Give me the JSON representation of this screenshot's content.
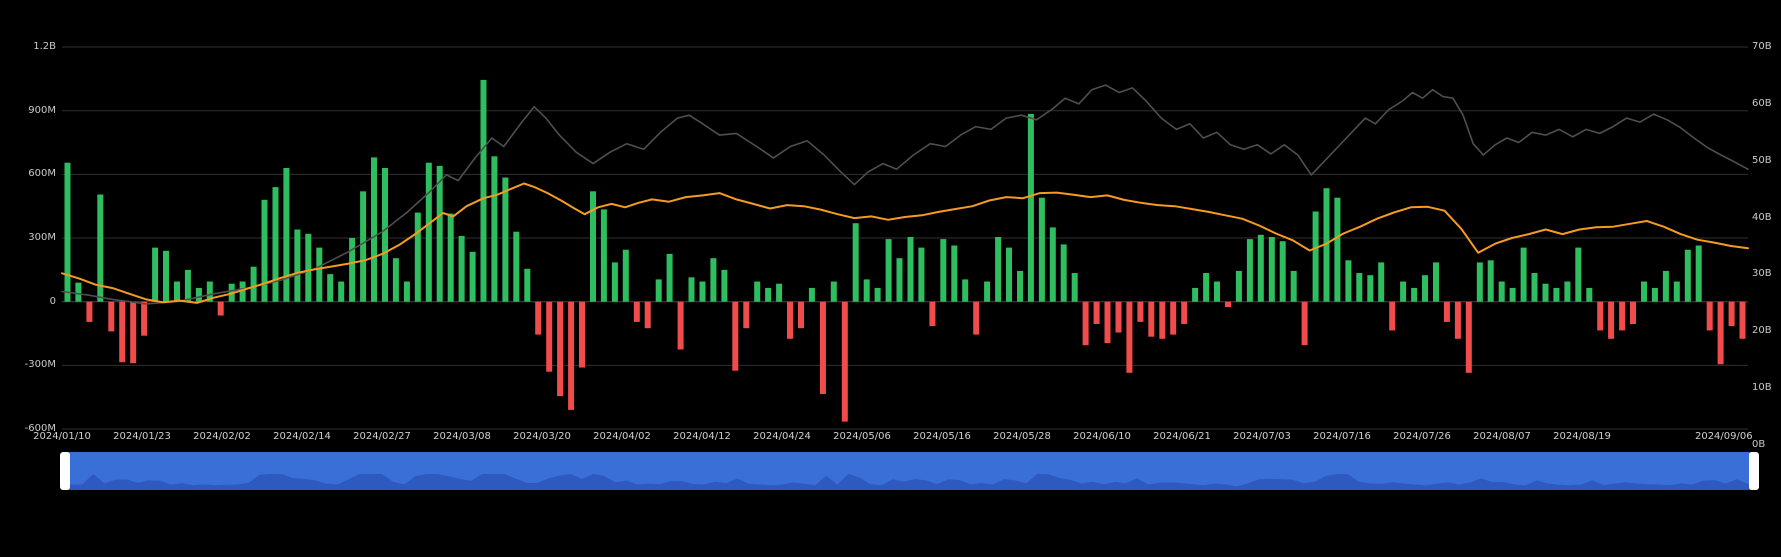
{
  "colors": {
    "background": "#000000",
    "bar_positive": "#2ebd5f",
    "bar_negative": "#f14c4c",
    "orange_line": "#f59b22",
    "dark_line": "#4f4f4f",
    "grid": "#2f2f2f",
    "zero_line": "#454545",
    "axis_text": "#c9c9c9",
    "scrollbar_blue": "#3a6fd8",
    "scrollbar_wave": "#2d58bd",
    "scrollbar_handle": "#ffffff"
  },
  "chart_data": {
    "type": "bar",
    "title": "",
    "xlabel": "",
    "ylabel": "",
    "left_axis": {
      "ticks": [
        "1.2B",
        "900M",
        "600M",
        "300M",
        "0",
        "-300M",
        "-600M"
      ],
      "tick_values_M": [
        1200,
        900,
        600,
        300,
        0,
        -300,
        -600
      ],
      "range_M": [
        -600,
        1200
      ],
      "grid": true
    },
    "right_axis": {
      "ticks": [
        "70B",
        "60B",
        "50B",
        "40B",
        "30B",
        "20B",
        "10B",
        "0B"
      ],
      "tick_values_B": [
        70,
        60,
        50,
        40,
        30,
        20,
        10,
        0
      ],
      "range_B": [
        0,
        70
      ]
    },
    "x_tick_labels": [
      "2024/01/10",
      "2024/01/23",
      "2024/02/02",
      "2024/02/14",
      "2024/02/27",
      "2024/03/08",
      "2024/03/20",
      "2024/04/02",
      "2024/04/12",
      "2024/04/24",
      "2024/05/06",
      "2024/05/16",
      "2024/05/28",
      "2024/06/10",
      "2024/06/21",
      "2024/07/03",
      "2024/07/16",
      "2024/07/26",
      "2024/08/07",
      "2024/08/19",
      "2024/09/06"
    ],
    "bars": {
      "name": "daily-net-flow-bars",
      "unit": "M",
      "values": [
        655,
        90,
        -95,
        505,
        -140,
        -285,
        -290,
        -160,
        255,
        240,
        95,
        150,
        65,
        95,
        -65,
        85,
        95,
        165,
        480,
        540,
        630,
        340,
        320,
        255,
        130,
        95,
        300,
        520,
        680,
        630,
        205,
        95,
        420,
        655,
        640,
        415,
        310,
        235,
        1045,
        685,
        585,
        330,
        155,
        -155,
        -330,
        -445,
        -510,
        -310,
        520,
        435,
        185,
        245,
        -95,
        -125,
        105,
        225,
        -225,
        115,
        95,
        205,
        150,
        -325,
        -125,
        95,
        65,
        85,
        -175,
        -125,
        65,
        -435,
        95,
        -565,
        370,
        105,
        65,
        295,
        205,
        305,
        255,
        -115,
        295,
        265,
        105,
        -155,
        95,
        305,
        255,
        145,
        885,
        490,
        350,
        270,
        135,
        -205,
        -105,
        -195,
        -145,
        -335,
        -95,
        -165,
        -175,
        -155,
        -105,
        65,
        135,
        95,
        -25,
        145,
        295,
        315,
        305,
        285,
        145,
        -205,
        425,
        535,
        490,
        195,
        135,
        125,
        185,
        -135,
        95,
        65,
        125,
        185,
        -95,
        -175,
        -335,
        185,
        195,
        95,
        65,
        255,
        135,
        85,
        65,
        95,
        255,
        65,
        -135,
        -175,
        -135,
        -105,
        95,
        65,
        145,
        95,
        245,
        265,
        -135,
        -295,
        -115,
        -175
      ]
    },
    "lines": [
      {
        "name": "dark-line",
        "color": "#4f4f4f",
        "unit": "B",
        "points": [
          [
            0,
            27
          ],
          [
            0.015,
            26.4
          ],
          [
            0.03,
            25.6
          ],
          [
            0.05,
            24.8
          ],
          [
            0.07,
            25.3
          ],
          [
            0.09,
            26.6
          ],
          [
            0.11,
            27.6
          ],
          [
            0.13,
            29
          ],
          [
            0.15,
            31
          ],
          [
            0.17,
            34
          ],
          [
            0.19,
            37.5
          ],
          [
            0.205,
            41
          ],
          [
            0.218,
            44.5
          ],
          [
            0.228,
            47.5
          ],
          [
            0.235,
            46.5
          ],
          [
            0.245,
            50.5
          ],
          [
            0.255,
            54
          ],
          [
            0.262,
            52.5
          ],
          [
            0.272,
            56.5
          ],
          [
            0.28,
            59.5
          ],
          [
            0.287,
            57.5
          ],
          [
            0.295,
            54.5
          ],
          [
            0.305,
            51.5
          ],
          [
            0.315,
            49.5
          ],
          [
            0.325,
            51.5
          ],
          [
            0.335,
            53
          ],
          [
            0.345,
            52
          ],
          [
            0.355,
            55
          ],
          [
            0.365,
            57.5
          ],
          [
            0.372,
            58
          ],
          [
            0.38,
            56.5
          ],
          [
            0.39,
            54.5
          ],
          [
            0.4,
            54.8
          ],
          [
            0.412,
            52.5
          ],
          [
            0.422,
            50.5
          ],
          [
            0.432,
            52.5
          ],
          [
            0.442,
            53.5
          ],
          [
            0.452,
            51
          ],
          [
            0.462,
            48
          ],
          [
            0.47,
            45.8
          ],
          [
            0.478,
            48
          ],
          [
            0.487,
            49.5
          ],
          [
            0.495,
            48.5
          ],
          [
            0.505,
            51
          ],
          [
            0.515,
            53
          ],
          [
            0.524,
            52.5
          ],
          [
            0.533,
            54.5
          ],
          [
            0.542,
            56
          ],
          [
            0.551,
            55.5
          ],
          [
            0.56,
            57.5
          ],
          [
            0.569,
            58
          ],
          [
            0.578,
            57.2
          ],
          [
            0.587,
            59
          ],
          [
            0.595,
            61
          ],
          [
            0.603,
            60
          ],
          [
            0.611,
            62.5
          ],
          [
            0.619,
            63.3
          ],
          [
            0.627,
            62
          ],
          [
            0.635,
            62.8
          ],
          [
            0.643,
            60.5
          ],
          [
            0.652,
            57.5
          ],
          [
            0.661,
            55.5
          ],
          [
            0.669,
            56.5
          ],
          [
            0.677,
            54
          ],
          [
            0.685,
            55
          ],
          [
            0.693,
            52.8
          ],
          [
            0.701,
            52
          ],
          [
            0.709,
            52.8
          ],
          [
            0.717,
            51.2
          ],
          [
            0.725,
            52.8
          ],
          [
            0.733,
            51
          ],
          [
            0.741,
            47.5
          ],
          [
            0.749,
            50
          ],
          [
            0.757,
            52.5
          ],
          [
            0.765,
            55
          ],
          [
            0.773,
            57.5
          ],
          [
            0.779,
            56.5
          ],
          [
            0.787,
            59
          ],
          [
            0.795,
            60.5
          ],
          [
            0.801,
            62
          ],
          [
            0.807,
            61
          ],
          [
            0.813,
            62.5
          ],
          [
            0.819,
            61.3
          ],
          [
            0.825,
            61
          ],
          [
            0.831,
            58
          ],
          [
            0.837,
            53
          ],
          [
            0.843,
            51
          ],
          [
            0.85,
            52.8
          ],
          [
            0.857,
            54
          ],
          [
            0.864,
            53.2
          ],
          [
            0.872,
            55
          ],
          [
            0.88,
            54.5
          ],
          [
            0.888,
            55.5
          ],
          [
            0.896,
            54.2
          ],
          [
            0.904,
            55.5
          ],
          [
            0.912,
            54.8
          ],
          [
            0.92,
            56
          ],
          [
            0.928,
            57.5
          ],
          [
            0.936,
            56.8
          ],
          [
            0.944,
            58.2
          ],
          [
            0.952,
            57.2
          ],
          [
            0.96,
            55.8
          ],
          [
            0.968,
            54
          ],
          [
            0.976,
            52.3
          ],
          [
            0.984,
            51
          ],
          [
            0.992,
            49.8
          ],
          [
            1,
            48.5
          ]
        ]
      },
      {
        "name": "orange-line",
        "color": "#f59b22",
        "unit": "B",
        "points": [
          [
            0,
            30.2
          ],
          [
            0.01,
            29.3
          ],
          [
            0.02,
            28.2
          ],
          [
            0.03,
            27.6
          ],
          [
            0.04,
            26.6
          ],
          [
            0.05,
            25.6
          ],
          [
            0.06,
            25.1
          ],
          [
            0.07,
            25.4
          ],
          [
            0.08,
            25.0
          ],
          [
            0.09,
            25.9
          ],
          [
            0.1,
            26.6
          ],
          [
            0.11,
            27.5
          ],
          [
            0.12,
            28.4
          ],
          [
            0.13,
            29.4
          ],
          [
            0.14,
            30.3
          ],
          [
            0.15,
            30.9
          ],
          [
            0.16,
            31.4
          ],
          [
            0.17,
            31.9
          ],
          [
            0.18,
            32.5
          ],
          [
            0.19,
            33.6
          ],
          [
            0.2,
            35.2
          ],
          [
            0.21,
            37.2
          ],
          [
            0.218,
            39
          ],
          [
            0.226,
            40.8
          ],
          [
            0.232,
            40.2
          ],
          [
            0.24,
            42
          ],
          [
            0.25,
            43.4
          ],
          [
            0.258,
            44
          ],
          [
            0.266,
            45
          ],
          [
            0.274,
            46
          ],
          [
            0.28,
            45.4
          ],
          [
            0.288,
            44.3
          ],
          [
            0.296,
            43
          ],
          [
            0.304,
            41.6
          ],
          [
            0.31,
            40.6
          ],
          [
            0.318,
            41.8
          ],
          [
            0.326,
            42.4
          ],
          [
            0.334,
            41.8
          ],
          [
            0.342,
            42.6
          ],
          [
            0.35,
            43.2
          ],
          [
            0.36,
            42.8
          ],
          [
            0.37,
            43.6
          ],
          [
            0.38,
            43.9
          ],
          [
            0.39,
            44.3
          ],
          [
            0.4,
            43.2
          ],
          [
            0.41,
            42.4
          ],
          [
            0.42,
            41.6
          ],
          [
            0.43,
            42.2
          ],
          [
            0.44,
            42
          ],
          [
            0.45,
            41.4
          ],
          [
            0.46,
            40.6
          ],
          [
            0.47,
            39.9
          ],
          [
            0.48,
            40.2
          ],
          [
            0.49,
            39.6
          ],
          [
            0.5,
            40.1
          ],
          [
            0.51,
            40.4
          ],
          [
            0.52,
            41
          ],
          [
            0.53,
            41.5
          ],
          [
            0.54,
            42
          ],
          [
            0.55,
            43
          ],
          [
            0.56,
            43.6
          ],
          [
            0.57,
            43.4
          ],
          [
            0.58,
            44.3
          ],
          [
            0.59,
            44.4
          ],
          [
            0.6,
            44
          ],
          [
            0.61,
            43.6
          ],
          [
            0.62,
            43.9
          ],
          [
            0.63,
            43.1
          ],
          [
            0.64,
            42.6
          ],
          [
            0.65,
            42.2
          ],
          [
            0.66,
            42
          ],
          [
            0.67,
            41.5
          ],
          [
            0.68,
            41
          ],
          [
            0.69,
            40.4
          ],
          [
            0.7,
            39.8
          ],
          [
            0.71,
            38.6
          ],
          [
            0.72,
            37.2
          ],
          [
            0.73,
            36
          ],
          [
            0.74,
            34.2
          ],
          [
            0.75,
            35.4
          ],
          [
            0.76,
            37.2
          ],
          [
            0.77,
            38.4
          ],
          [
            0.78,
            39.8
          ],
          [
            0.79,
            40.9
          ],
          [
            0.8,
            41.8
          ],
          [
            0.81,
            41.9
          ],
          [
            0.82,
            41.2
          ],
          [
            0.83,
            38
          ],
          [
            0.84,
            33.8
          ],
          [
            0.85,
            35.4
          ],
          [
            0.86,
            36.4
          ],
          [
            0.87,
            37.1
          ],
          [
            0.88,
            37.9
          ],
          [
            0.89,
            37.1
          ],
          [
            0.9,
            37.9
          ],
          [
            0.91,
            38.3
          ],
          [
            0.92,
            38.4
          ],
          [
            0.93,
            38.9
          ],
          [
            0.94,
            39.4
          ],
          [
            0.95,
            38.4
          ],
          [
            0.96,
            37.1
          ],
          [
            0.97,
            36.1
          ],
          [
            0.98,
            35.6
          ],
          [
            0.99,
            35
          ],
          [
            1,
            34.6
          ]
        ]
      }
    ],
    "legend": {
      "visible": false
    }
  },
  "scrollbar": {
    "left_handle": "drag-handle",
    "right_handle": "drag-handle"
  }
}
